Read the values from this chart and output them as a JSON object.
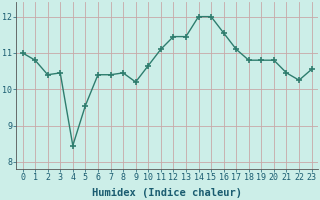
{
  "x": [
    0,
    1,
    2,
    3,
    4,
    5,
    6,
    7,
    8,
    9,
    10,
    11,
    12,
    13,
    14,
    15,
    16,
    17,
    18,
    19,
    20,
    21,
    22,
    23
  ],
  "y": [
    11.0,
    10.8,
    10.4,
    10.45,
    8.45,
    9.55,
    10.4,
    10.4,
    10.45,
    10.2,
    10.65,
    11.1,
    11.45,
    11.45,
    12.0,
    12.0,
    11.55,
    11.1,
    10.8,
    10.8,
    10.8,
    10.45,
    10.25,
    10.55
  ],
  "line_color": "#2e7d6e",
  "marker": "+",
  "marker_size": 4.0,
  "linewidth": 1.0,
  "xlabel": "Humidex (Indice chaleur)",
  "ylim": [
    7.8,
    12.4
  ],
  "xlim": [
    -0.5,
    23.5
  ],
  "yticks": [
    8,
    9,
    10,
    11,
    12
  ],
  "xticks": [
    0,
    1,
    2,
    3,
    4,
    5,
    6,
    7,
    8,
    9,
    10,
    11,
    12,
    13,
    14,
    15,
    16,
    17,
    18,
    19,
    20,
    21,
    22,
    23
  ],
  "bg_color": "#cceee8",
  "grid_color": "#c8a8a8",
  "xlabel_fontsize": 7.5,
  "tick_fontsize": 6.0
}
